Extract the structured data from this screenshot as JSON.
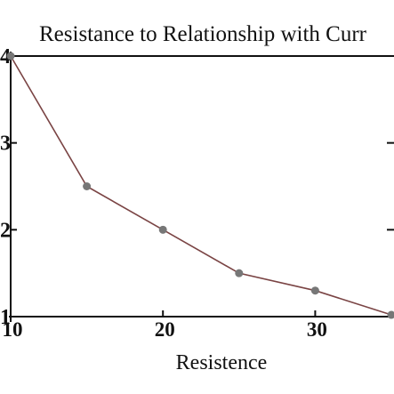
{
  "chart_data": {
    "type": "line",
    "title": "Resistance to Relationship with Curr",
    "xlabel": "Resistence",
    "ylabel": "",
    "xlim": [
      10,
      35
    ],
    "ylim": [
      1,
      4
    ],
    "x_ticks": [
      10,
      20,
      30
    ],
    "y_ticks": [
      1,
      2,
      3,
      4
    ],
    "x_tick_labels": [
      "10",
      "20",
      "30"
    ],
    "y_tick_labels": [
      "1",
      "2",
      "3",
      "4"
    ],
    "grid": false,
    "series": [
      {
        "x": [
          10,
          15,
          20,
          25,
          30,
          35
        ],
        "values": [
          4.0,
          2.5,
          2.0,
          1.5,
          1.3,
          1.02
        ],
        "line_color": "#7a4444",
        "marker_color": "#777777"
      }
    ]
  }
}
